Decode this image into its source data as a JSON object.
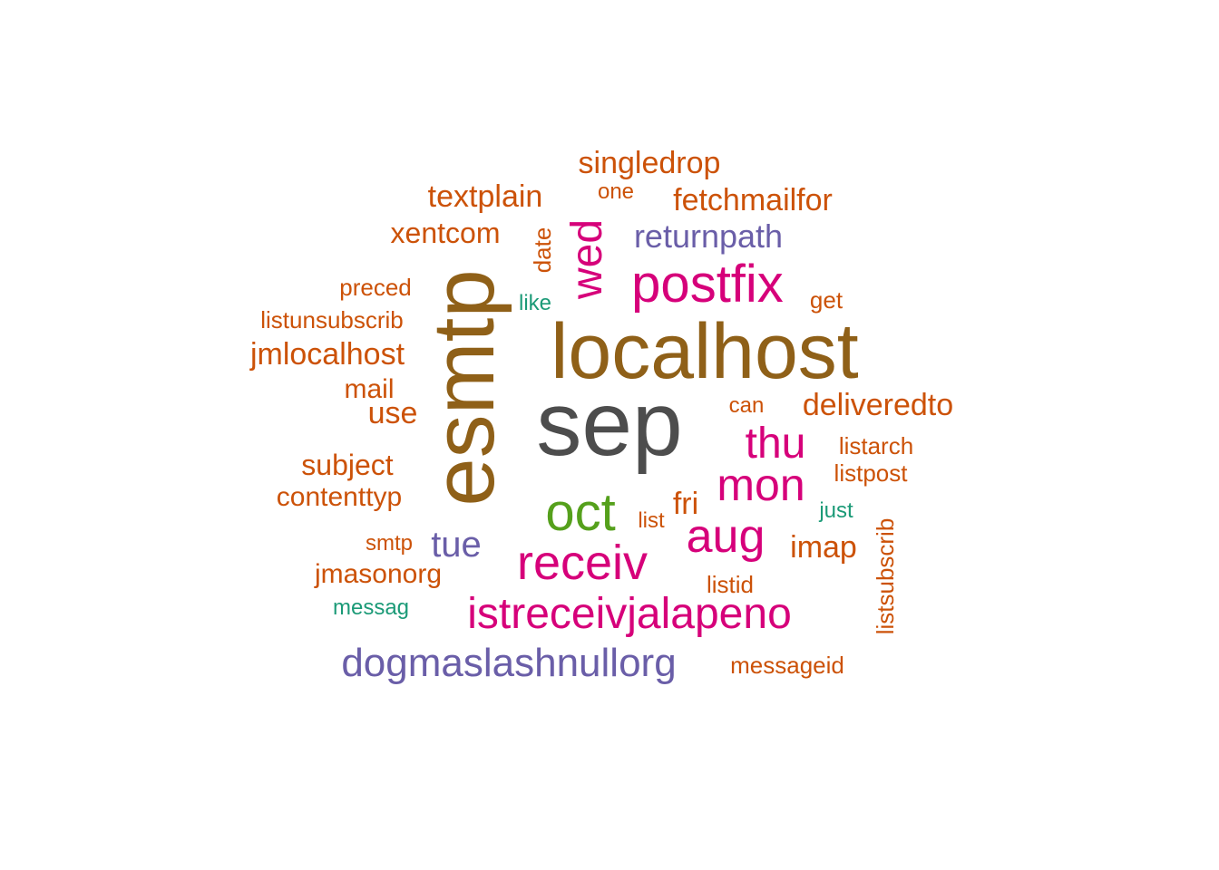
{
  "palette": {
    "grey": "#4d4d4d",
    "brown": "#8f6018",
    "magenta": "#d6007a",
    "green": "#55a01c",
    "orange": "#cc5208",
    "purple": "#6a5ea8",
    "teal": "#1b9a77"
  },
  "words": [
    {
      "text": "sep",
      "color": "grey"
    },
    {
      "text": "localhost",
      "color": "brown"
    },
    {
      "text": "esmtp",
      "color": "brown"
    },
    {
      "text": "postfix",
      "color": "magenta"
    },
    {
      "text": "oct",
      "color": "green"
    },
    {
      "text": "receiv",
      "color": "magenta"
    },
    {
      "text": "aug",
      "color": "magenta"
    },
    {
      "text": "mon",
      "color": "magenta"
    },
    {
      "text": "thu",
      "color": "magenta"
    },
    {
      "text": "wed",
      "color": "magenta"
    },
    {
      "text": "istreceivjalapeno",
      "color": "magenta"
    },
    {
      "text": "dogmaslashnullorg",
      "color": "purple"
    },
    {
      "text": "returnpath",
      "color": "purple"
    },
    {
      "text": "tue",
      "color": "purple"
    },
    {
      "text": "fri",
      "color": "orange"
    },
    {
      "text": "imap",
      "color": "orange"
    },
    {
      "text": "singledrop",
      "color": "orange"
    },
    {
      "text": "fetchmailfor",
      "color": "orange"
    },
    {
      "text": "textplain",
      "color": "orange"
    },
    {
      "text": "xentcom",
      "color": "orange"
    },
    {
      "text": "deliveredto",
      "color": "orange"
    },
    {
      "text": "jmlocalhost",
      "color": "orange"
    },
    {
      "text": "subject",
      "color": "orange"
    },
    {
      "text": "contenttyp",
      "color": "orange"
    },
    {
      "text": "jmasonorg",
      "color": "orange"
    },
    {
      "text": "use",
      "color": "orange"
    },
    {
      "text": "mail",
      "color": "orange"
    },
    {
      "text": "listunsubscrib",
      "color": "orange"
    },
    {
      "text": "preced",
      "color": "orange"
    },
    {
      "text": "date",
      "color": "orange"
    },
    {
      "text": "one",
      "color": "orange"
    },
    {
      "text": "get",
      "color": "orange"
    },
    {
      "text": "can",
      "color": "orange"
    },
    {
      "text": "listarch",
      "color": "orange"
    },
    {
      "text": "listpost",
      "color": "orange"
    },
    {
      "text": "list",
      "color": "orange"
    },
    {
      "text": "smtp",
      "color": "orange"
    },
    {
      "text": "listid",
      "color": "orange"
    },
    {
      "text": "listsubscrib",
      "color": "orange"
    },
    {
      "text": "messageid",
      "color": "orange"
    },
    {
      "text": "like",
      "color": "teal"
    },
    {
      "text": "just",
      "color": "teal"
    },
    {
      "text": "messag",
      "color": "teal"
    }
  ]
}
